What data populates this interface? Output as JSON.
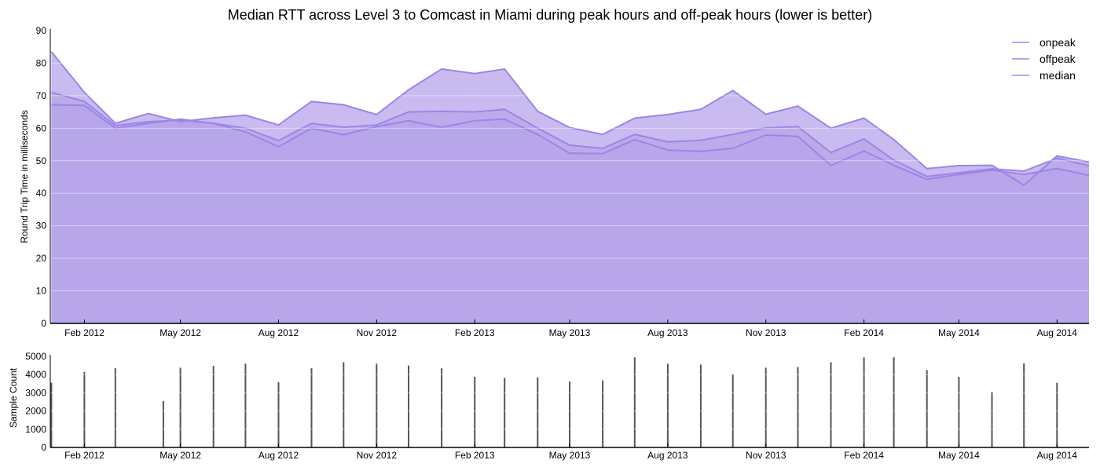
{
  "colors": {
    "series_fill": "#b7a4ea",
    "series_line": "#9b85e6",
    "sample_bar": "#555555",
    "axis": "#000000",
    "grid": "#ffffff"
  },
  "chart_data": [
    {
      "type": "area",
      "title": "Median RTT across Level 3 to Comcast in Miami during peak hours and off-peak hours (lower is better)",
      "ylabel": "Round Trip Time in milliseconds",
      "xlabel": "",
      "ylim": [
        0,
        90
      ],
      "y_ticks": [
        0,
        10,
        20,
        30,
        40,
        50,
        60,
        70,
        80,
        90
      ],
      "x_range": [
        "2011-12-31",
        "2014-08-31"
      ],
      "x_ticks": [
        {
          "date": "2012-02-01",
          "label": "Feb 2012"
        },
        {
          "date": "2012-05-01",
          "label": "May 2012"
        },
        {
          "date": "2012-08-01",
          "label": "Aug 2012"
        },
        {
          "date": "2012-11-01",
          "label": "Nov 2012"
        },
        {
          "date": "2013-02-01",
          "label": "Feb 2013"
        },
        {
          "date": "2013-05-01",
          "label": "May 2013"
        },
        {
          "date": "2013-08-01",
          "label": "Aug 2013"
        },
        {
          "date": "2013-11-01",
          "label": "Nov 2013"
        },
        {
          "date": "2014-02-01",
          "label": "Feb 2014"
        },
        {
          "date": "2014-05-01",
          "label": "May 2014"
        },
        {
          "date": "2014-08-01",
          "label": "Aug 2014"
        }
      ],
      "grid": true,
      "legend_position": "top-right",
      "x": [
        "2012-01-01",
        "2012-02-01",
        "2012-03-01",
        "2012-04-01",
        "2012-05-01",
        "2012-06-01",
        "2012-07-01",
        "2012-08-01",
        "2012-09-01",
        "2012-10-01",
        "2012-11-01",
        "2012-12-01",
        "2013-01-01",
        "2013-02-01",
        "2013-03-01",
        "2013-04-01",
        "2013-05-01",
        "2013-06-01",
        "2013-07-01",
        "2013-08-01",
        "2013-09-01",
        "2013-10-01",
        "2013-11-01",
        "2013-12-01",
        "2014-01-01",
        "2014-02-01",
        "2014-03-01",
        "2014-04-01",
        "2014-05-01",
        "2014-06-01",
        "2014-07-01",
        "2014-08-01",
        "2014-08-31"
      ],
      "series": [
        {
          "name": "onpeak",
          "values": [
            83.5,
            71,
            61.5,
            64.5,
            62,
            63.2,
            64,
            61,
            68.2,
            67.2,
            64.2,
            71.8,
            78.2,
            76.8,
            78.2,
            65.2,
            60.2,
            58.1,
            63.1,
            64.2,
            65.8,
            71.6,
            64.3,
            66.8,
            60,
            63.1,
            56.5,
            47.6,
            48.5,
            48.6,
            42.5,
            51.5,
            49.6
          ]
        },
        {
          "name": "offpeak",
          "values": [
            71,
            68.2,
            60.8,
            62,
            62.5,
            61.5,
            60,
            56.2,
            61.5,
            60.3,
            61,
            65,
            65.2,
            65,
            65.8,
            60,
            54.8,
            53.8,
            58.1,
            55.8,
            56.3,
            58.1,
            60.1,
            60.5,
            52.5,
            56.7,
            50.2,
            45.2,
            46.3,
            47.5,
            46.8,
            50.8,
            48.5
          ]
        },
        {
          "name": "median",
          "values": [
            67.2,
            67,
            60,
            61.5,
            62.8,
            61.5,
            58.9,
            54.3,
            60,
            58,
            60.5,
            62.3,
            60.3,
            62.3,
            62.8,
            58.1,
            52.3,
            52.2,
            56.5,
            53.3,
            52.9,
            53.8,
            57.9,
            57.5,
            48.5,
            53,
            48.6,
            44.3,
            45.8,
            47.1,
            45.8,
            47.6,
            45.5
          ]
        }
      ]
    },
    {
      "type": "bar",
      "ylabel": "Sample Count",
      "xlabel": "",
      "ylim": [
        0,
        5000
      ],
      "y_ticks": [
        0,
        1000,
        2000,
        3000,
        4000,
        5000
      ],
      "x": [
        "2012-01-01",
        "2012-02-01",
        "2012-03-01",
        "2012-04-15",
        "2012-05-01",
        "2012-06-01",
        "2012-07-01",
        "2012-08-01",
        "2012-09-01",
        "2012-10-01",
        "2012-11-01",
        "2012-12-01",
        "2013-01-01",
        "2013-02-01",
        "2013-03-01",
        "2013-04-01",
        "2013-05-01",
        "2013-06-01",
        "2013-07-01",
        "2013-08-01",
        "2013-09-01",
        "2013-10-01",
        "2013-11-01",
        "2013-12-01",
        "2014-01-01",
        "2014-02-01",
        "2014-03-01",
        "2014-04-01",
        "2014-05-01",
        "2014-06-01",
        "2014-07-01",
        "2014-08-01"
      ],
      "values": [
        3550,
        4150,
        4350,
        2550,
        4380,
        4480,
        4600,
        3580,
        4350,
        4680,
        4600,
        4500,
        4350,
        3880,
        3820,
        3850,
        3620,
        3680,
        4950,
        4600,
        4550,
        4020,
        4380,
        4420,
        4680,
        4950,
        4950,
        4250,
        3880,
        3060,
        4620,
        3550
      ]
    }
  ]
}
